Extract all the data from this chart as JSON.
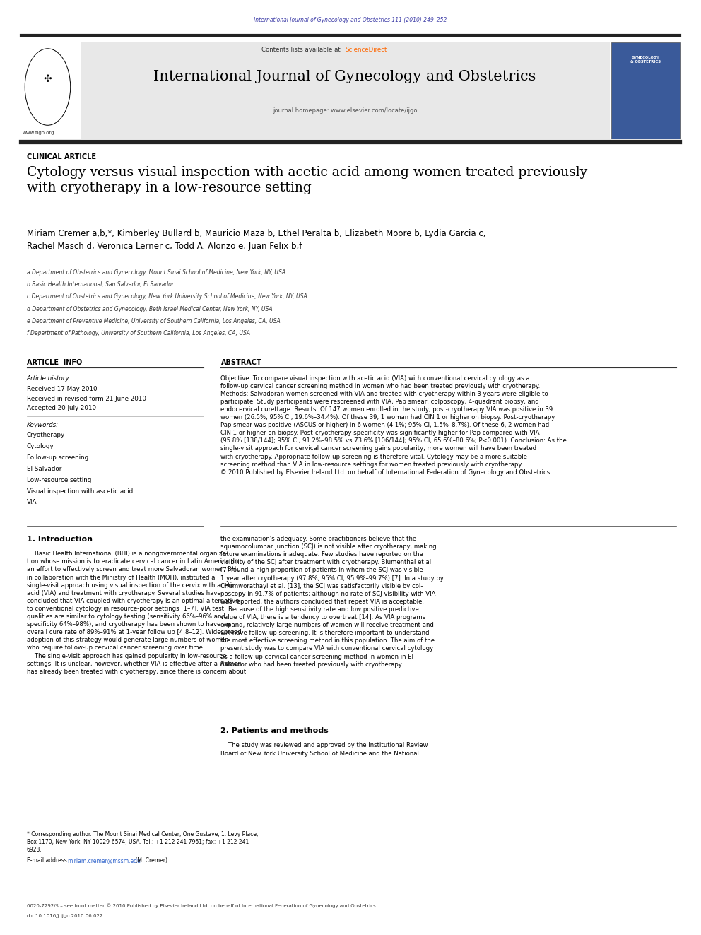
{
  "page_width": 9.92,
  "page_height": 13.23,
  "background_color": "#ffffff",
  "header_journal_text": "International Journal of Gynecology and Obstetrics 111 (2010) 249–252",
  "header_journal_color": "#4444aa",
  "header_bar_color": "#222222",
  "journal_title": "International Journal of Gynecology and Obstetrics",
  "journal_homepage": "journal homepage: www.elsevier.com/locate/ijgo",
  "contents_text": "Contents lists available at ScienceDirect",
  "sciencedirect_color": "#ff6600",
  "figo_url": "www.figo.org",
  "section_label": "CLINICAL ARTICLE",
  "article_title": "Cytology versus visual inspection with acetic acid among women treated previously\nwith cryotherapy in a low-resource setting",
  "authors": "Miriam Cremer a,b,*, Kimberley Bullard b, Mauricio Maza b, Ethel Peralta b, Elizabeth Moore b, Lydia Garcia c,\nRachel Masch d, Veronica Lerner c, Todd A. Alonzo e, Juan Felix b,f",
  "affiliations": [
    "a Department of Obstetrics and Gynecology, Mount Sinai School of Medicine, New York, NY, USA",
    "b Basic Health International, San Salvador, El Salvador",
    "c Department of Obstetrics and Gynecology, New York University School of Medicine, New York, NY, USA",
    "d Department of Obstetrics and Gynecology, Beth Israel Medical Center, New York, NY, USA",
    "e Department of Preventive Medicine, University of Southern California, Los Angeles, CA, USA",
    "f Department of Pathology, University of Southern California, Los Angeles, CA, USA"
  ],
  "article_info_label": "ARTICLE  INFO",
  "abstract_label": "ABSTRACT",
  "article_history_label": "Article history:",
  "received": "Received 17 May 2010",
  "revised": "Received in revised form 21 June 2010",
  "accepted": "Accepted 20 July 2010",
  "keywords_label": "Keywords:",
  "keywords": [
    "Cryotherapy",
    "Cytology",
    "Follow-up screening",
    "El Salvador",
    "Low-resource setting",
    "Visual inspection with ascetic acid",
    "VIA"
  ],
  "abstract_text": "Objective: To compare visual inspection with acetic acid (VIA) with conventional cervical cytology as a\nfollow-up cervical cancer screening method in women who had been treated previously with cryotherapy.\nMethods: Salvadoran women screened with VIA and treated with cryotherapy within 3 years were eligible to\nparticipate. Study participants were rescreened with VIA, Pap smear, colposcopy, 4-quadrant biopsy, and\nendocervical curettage. Results: Of 147 women enrolled in the study, post-cryotherapy VIA was positive in 39\nwomen (26.5%; 95% CI, 19.6%–34.4%). Of these 39, 1 woman had CIN 1 or higher on biopsy. Post-cryotherapy\nPap smear was positive (ASCUS or higher) in 6 women (4.1%; 95% CI, 1.5%–8.7%). Of these 6, 2 women had\nCIN 1 or higher on biopsy. Post-cryotherapy specificity was significantly higher for Pap compared with VIA\n(95.8% [138/144]; 95% CI, 91.2%–98.5% vs 73.6% [106/144]; 95% CI, 65.6%–80.6%; P<0.001). Conclusion: As the\nsingle-visit approach for cervical cancer screening gains popularity, more women will have been treated\nwith cryotherapy. Appropriate follow-up screening is therefore vital. Cytology may be a more suitable\nscreening method than VIA in low-resource settings for women treated previously with cryotherapy.\n© 2010 Published by Elsevier Ireland Ltd. on behalf of International Federation of Gynecology and Obstetrics.",
  "intro_heading": "1. Introduction",
  "intro_col1": "    Basic Health International (BHI) is a nongovernmental organiza-\ntion whose mission is to eradicate cervical cancer in Latin America. In\nan effort to effectively screen and treat more Salvadoran women, BHI,\nin collaboration with the Ministry of Health (MOH), instituted a\nsingle-visit approach using visual inspection of the cervix with acetic\nacid (VIA) and treatment with cryotherapy. Several studies have\nconcluded that VIA coupled with cryotherapy is an optimal alternative\nto conventional cytology in resource-poor settings [1–7]. VIA test\nqualities are similar to cytology testing (sensitivity 66%–96% and\nspecificity 64%–98%), and cryotherapy has been shown to have an\noverall cure rate of 89%–91% at 1-year follow up [4,8–12]. Widespread\nadoption of this strategy would generate large numbers of women\nwho require follow-up cervical cancer screening over time.\n    The single-visit approach has gained popularity in low-resource\nsettings. It is unclear, however, whether VIA is effective after a woman\nhas already been treated with cryotherapy, since there is concern about",
  "intro_col2": "the examination's adequacy. Some practitioners believe that the\nsquamocolumnar junction (SCJ) is not visible after cryotherapy, making\nfuture examinations inadequate. Few studies have reported on the\nvisibility of the SCJ after treatment with cryotherapy. Blumenthal et al.\n[7] found a high proportion of patients in whom the SCJ was visible\n1 year after cryotherapy (97.8%; 95% CI, 95.9%–99.7%) [7]. In a study by\nChumworathayi et al. [13], the SCJ was satisfactorily visible by col-\nposcopy in 91.7% of patients; although no rate of SCJ visibility with VIA\nwas reported, the authors concluded that repeat VIA is acceptable.\n    Because of the high sensitivity rate and low positive predictive\nvalue of VIA, there is a tendency to overtreat [14]. As VIA programs\nexpand, relatively large numbers of women will receive treatment and\nwill have follow-up screening. It is therefore important to understand\nthe most effective screening method in this population. The aim of the\npresent study was to compare VIA with conventional cervical cytology\nas a follow-up cervical cancer screening method in women in El\nSalvador who had been treated previously with cryotherapy.",
  "section2_heading": "2. Patients and methods",
  "section2_text": "    The study was reviewed and approved by the Institutional Review\nBoard of New York University School of Medicine and the National",
  "footnote_star": "* Corresponding author. The Mount Sinai Medical Center, One Gustave, 1. Levy Place,\nBox 1170, New York, NY 10029-6574, USA. Tel.: +1 212 241 7961; fax: +1 212 241\n6928.",
  "footnote_email_prefix": "E-mail address: ",
  "footnote_email": "miriam.cremer@mssm.edu",
  "footnote_email_suffix": " (M. Cremer).",
  "bottom_line1": "0020-7292/$ – see front matter © 2010 Published by Elsevier Ireland Ltd. on behalf of International Federation of Gynecology and Obstetrics.",
  "bottom_line2": "doi:10.1016/j.ijgo.2010.06.022"
}
